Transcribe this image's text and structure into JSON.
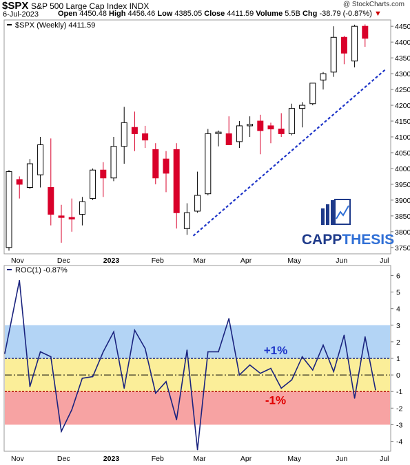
{
  "header": {
    "ticker": "$SPX",
    "name": "S&P 500 Large Cap Index",
    "exchange": "INDX",
    "date": "6-Jul-2023",
    "open_label": "Open",
    "open": "4450.48",
    "high_label": "High",
    "high": "4456.46",
    "low_label": "Low",
    "low": "4385.05",
    "close_label": "Close",
    "close": "4411.59",
    "volume_label": "Volume",
    "volume": "5.5B",
    "chg_label": "Chg",
    "chg": "-38.79 (-0.87%)",
    "watermark": "@ StockCharts.com"
  },
  "brand": {
    "name": "CAPPTHESIS",
    "name_part1": "CAPP",
    "name_part2": "THESIS"
  },
  "colors": {
    "up": "#ffffff",
    "down": "#d9002a",
    "candle_outline": "#000000",
    "roc_line": "#1a237e",
    "trendline": "#1e35c8",
    "band_blue": "#b3d4f5",
    "band_yellow": "#fbee99",
    "band_red": "#f7a3a3",
    "label_plus": "#1e35c8",
    "label_minus": "#e00000"
  },
  "chart_data": [
    {
      "type": "candlestick",
      "legend": "$SPX (Weekly) 4411.59",
      "ylim": [
        3730,
        4470
      ],
      "yticks": [
        3750,
        3800,
        3850,
        3900,
        3950,
        4000,
        4050,
        4100,
        4150,
        4200,
        4250,
        4300,
        4350,
        4400,
        4450
      ],
      "x_tick_labels": [
        {
          "label": "Nov",
          "index": 0.2
        },
        {
          "label": "Dec",
          "index": 4.6
        },
        {
          "label": "2023",
          "index": 9.0,
          "bold": true
        },
        {
          "label": "Feb",
          "index": 13.6
        },
        {
          "label": "Mar",
          "index": 17.6
        },
        {
          "label": "Apr",
          "index": 22.1
        },
        {
          "label": "May",
          "index": 26.6
        },
        {
          "label": "Jun",
          "index": 31.2
        },
        {
          "label": "Jul",
          "index": 35.4
        }
      ],
      "candles": [
        {
          "o": 3750,
          "h": 3995,
          "l": 3740,
          "c": 3990
        },
        {
          "o": 3965,
          "h": 3975,
          "l": 3905,
          "c": 3950
        },
        {
          "o": 3940,
          "h": 4030,
          "l": 3935,
          "c": 4015
        },
        {
          "o": 3980,
          "h": 4100,
          "l": 3940,
          "c": 4075
        },
        {
          "o": 3940,
          "h": 4095,
          "l": 3820,
          "c": 3855
        },
        {
          "o": 3850,
          "h": 3885,
          "l": 3765,
          "c": 3845
        },
        {
          "o": 3845,
          "h": 3905,
          "l": 3800,
          "c": 3840
        },
        {
          "o": 3855,
          "h": 3910,
          "l": 3820,
          "c": 3895
        },
        {
          "o": 3905,
          "h": 4000,
          "l": 3900,
          "c": 3995
        },
        {
          "o": 3995,
          "h": 4020,
          "l": 3910,
          "c": 3970
        },
        {
          "o": 3970,
          "h": 4100,
          "l": 3960,
          "c": 4070
        },
        {
          "o": 4070,
          "h": 4195,
          "l": 4015,
          "c": 4145
        },
        {
          "o": 4130,
          "h": 4180,
          "l": 4055,
          "c": 4110
        },
        {
          "o": 4110,
          "h": 4135,
          "l": 4065,
          "c": 4090
        },
        {
          "o": 4060,
          "h": 4080,
          "l": 3950,
          "c": 3970
        },
        {
          "o": 4030,
          "h": 4055,
          "l": 3925,
          "c": 3985
        },
        {
          "o": 4060,
          "h": 4080,
          "l": 3810,
          "c": 3860
        },
        {
          "o": 3810,
          "h": 3890,
          "l": 3790,
          "c": 3860
        },
        {
          "o": 3865,
          "h": 3990,
          "l": 3860,
          "c": 3915
        },
        {
          "o": 3920,
          "h": 4125,
          "l": 3915,
          "c": 4110
        },
        {
          "o": 4110,
          "h": 4120,
          "l": 4070,
          "c": 4115
        },
        {
          "o": 4110,
          "h": 4165,
          "l": 4075,
          "c": 4075
        },
        {
          "o": 4085,
          "h": 4150,
          "l": 4065,
          "c": 4135
        },
        {
          "o": 4135,
          "h": 4165,
          "l": 4100,
          "c": 4140
        },
        {
          "o": 4150,
          "h": 4170,
          "l": 4045,
          "c": 4120
        },
        {
          "o": 4135,
          "h": 4145,
          "l": 4080,
          "c": 4125
        },
        {
          "o": 4125,
          "h": 4175,
          "l": 4100,
          "c": 4110
        },
        {
          "o": 4110,
          "h": 4205,
          "l": 4105,
          "c": 4190
        },
        {
          "o": 4190,
          "h": 4210,
          "l": 4130,
          "c": 4200
        },
        {
          "o": 4205,
          "h": 4270,
          "l": 4200,
          "c": 4270
        },
        {
          "o": 4280,
          "h": 4305,
          "l": 4250,
          "c": 4300
        },
        {
          "o": 4305,
          "h": 4450,
          "l": 4290,
          "c": 4415
        },
        {
          "o": 4415,
          "h": 4420,
          "l": 4330,
          "c": 4365
        },
        {
          "o": 4340,
          "h": 4455,
          "l": 4320,
          "c": 4450
        },
        {
          "o": 4450,
          "h": 4456,
          "l": 4385,
          "c": 4412
        }
      ],
      "trendline": [
        {
          "index": 17.6,
          "value": 3787
        },
        {
          "index": 35.9,
          "value": 4312
        }
      ]
    },
    {
      "type": "line",
      "legend": "ROC(1) -0.87%",
      "ylim": [
        -4.6,
        6.6
      ],
      "yticks": [
        -4,
        -3,
        -2,
        -1,
        0,
        1,
        2,
        3,
        4,
        5,
        6
      ],
      "bands": [
        {
          "from": 1,
          "to": 3,
          "color": "blue"
        },
        {
          "from": -1,
          "to": 1,
          "color": "yellow"
        },
        {
          "from": -3,
          "to": -1,
          "color": "red"
        }
      ],
      "reference_lines": [
        1,
        0,
        -1
      ],
      "labels": [
        {
          "text": "+1%",
          "value": 1.5
        },
        {
          "text": "-1%",
          "value": -1.5
        }
      ],
      "x_tick_labels": [
        {
          "label": "Nov",
          "index": 0.2
        },
        {
          "label": "Dec",
          "index": 4.6
        },
        {
          "label": "2023",
          "index": 9.0,
          "bold": true
        },
        {
          "label": "Feb",
          "index": 13.6
        },
        {
          "label": "Mar",
          "index": 17.6
        },
        {
          "label": "Apr",
          "index": 22.1
        },
        {
          "label": "May",
          "index": 26.6
        },
        {
          "label": "Jun",
          "index": 31.2
        },
        {
          "label": "Jul",
          "index": 35.4
        }
      ],
      "x": [
        0,
        1,
        2,
        3,
        4,
        5,
        6,
        7,
        8,
        9,
        10,
        11,
        12,
        13,
        14,
        15,
        16,
        17,
        18,
        19,
        20,
        21,
        22,
        23,
        24,
        25,
        26,
        27,
        28,
        29,
        30,
        31,
        32,
        33,
        34,
        35
      ],
      "values": [
        1.3,
        5.7,
        -0.7,
        1.4,
        1.1,
        -3.4,
        -2.1,
        -0.2,
        -0.1,
        1.4,
        2.6,
        -0.8,
        2.7,
        1.6,
        -1.1,
        -0.4,
        -2.7,
        1.5,
        -4.5,
        1.4,
        1.4,
        3.4,
        0.0,
        0.6,
        0.1,
        0.4,
        -0.8,
        -0.3,
        1.1,
        0.3,
        1.8,
        0.2,
        2.4,
        -1.4,
        2.3,
        -0.9
      ]
    }
  ]
}
